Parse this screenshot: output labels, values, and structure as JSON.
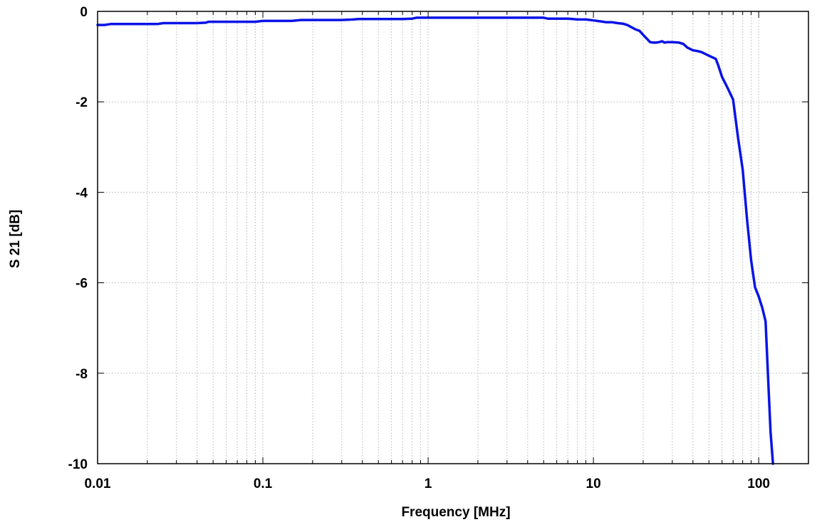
{
  "chart_data": {
    "type": "line",
    "title": "",
    "xlabel": "Frequency [MHz]",
    "ylabel": "S 21 [dB]",
    "xscale": "log",
    "xlim": [
      0.01,
      200
    ],
    "ylim": [
      -10,
      0
    ],
    "xticks": [
      {
        "value": 0.01,
        "label": "0.01"
      },
      {
        "value": 0.1,
        "label": "0.1"
      },
      {
        "value": 1,
        "label": "1"
      },
      {
        "value": 10,
        "label": "10"
      },
      {
        "value": 100,
        "label": "100"
      }
    ],
    "yticks": [
      {
        "value": 0,
        "label": "0"
      },
      {
        "value": -2,
        "label": "-2"
      },
      {
        "value": -4,
        "label": "-4"
      },
      {
        "value": -6,
        "label": "-6"
      },
      {
        "value": -8,
        "label": "-8"
      },
      {
        "value": -10,
        "label": "-10"
      }
    ],
    "grid": true,
    "grid_style": "dotted",
    "legend": "none",
    "series": [
      {
        "color": "#0a14e6",
        "x": [
          0.01,
          0.011,
          0.012,
          0.015,
          0.02,
          0.023,
          0.025,
          0.03,
          0.04,
          0.045,
          0.047,
          0.06,
          0.08,
          0.09,
          0.1,
          0.15,
          0.17,
          0.2,
          0.3,
          0.35,
          0.38,
          0.5,
          0.7,
          0.8,
          0.85,
          1,
          2,
          3,
          4,
          5,
          5.3,
          6,
          7,
          7.5,
          8,
          9,
          10,
          11,
          12,
          13,
          14,
          15,
          16,
          17,
          18,
          19,
          20,
          21,
          22,
          23,
          24,
          25,
          26,
          27,
          28,
          30,
          33,
          35,
          37,
          40,
          43,
          45,
          50,
          55,
          57,
          60,
          65,
          70,
          75,
          80,
          85,
          90,
          95,
          100,
          105,
          110,
          115,
          118,
          122
        ],
        "y": [
          -0.3,
          -0.3,
          -0.28,
          -0.28,
          -0.28,
          -0.28,
          -0.26,
          -0.26,
          -0.26,
          -0.25,
          -0.23,
          -0.23,
          -0.23,
          -0.23,
          -0.21,
          -0.21,
          -0.19,
          -0.19,
          -0.19,
          -0.18,
          -0.17,
          -0.17,
          -0.17,
          -0.16,
          -0.14,
          -0.14,
          -0.14,
          -0.14,
          -0.14,
          -0.14,
          -0.16,
          -0.16,
          -0.16,
          -0.17,
          -0.18,
          -0.18,
          -0.2,
          -0.22,
          -0.24,
          -0.24,
          -0.26,
          -0.27,
          -0.3,
          -0.35,
          -0.4,
          -0.43,
          -0.52,
          -0.6,
          -0.68,
          -0.69,
          -0.69,
          -0.68,
          -0.66,
          -0.69,
          -0.68,
          -0.68,
          -0.69,
          -0.72,
          -0.8,
          -0.86,
          -0.88,
          -0.9,
          -0.98,
          -1.05,
          -1.2,
          -1.45,
          -1.7,
          -1.95,
          -2.8,
          -3.5,
          -4.6,
          -5.5,
          -6.1,
          -6.3,
          -6.55,
          -6.85,
          -8.4,
          -9.3,
          -10.0
        ]
      }
    ]
  }
}
